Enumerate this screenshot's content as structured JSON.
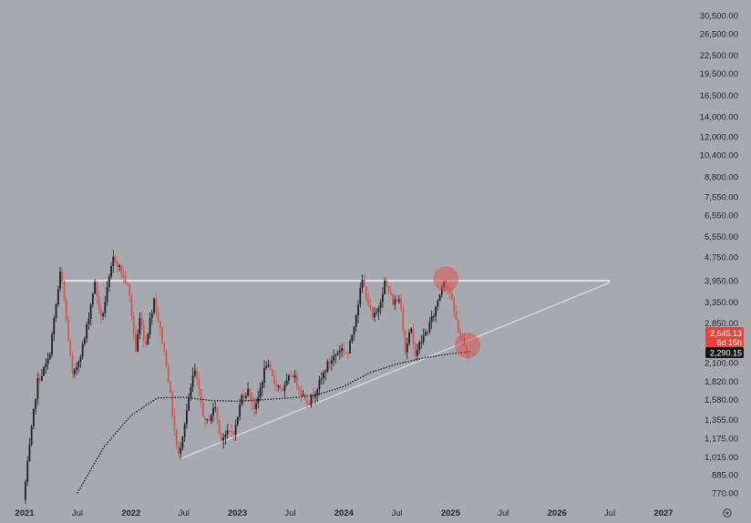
{
  "chart_data": {
    "type": "candlestick",
    "scale": "log",
    "grid": false,
    "colors": {
      "background": "#a6a9b0",
      "up": "#1e1f23",
      "down": "#d9544d",
      "resistance_line": "#e4e4e8",
      "support_line": "#d2d3d8",
      "moving_average": "#1e1f23",
      "highlight": "#d9534f",
      "price_label": "#e0463f",
      "ma_label": "#141414"
    },
    "y_ticks": [
      "30,500.00",
      "26,500.00",
      "22,500.00",
      "19,500.00",
      "16,500.00",
      "14,000.00",
      "12,000.00",
      "10,400.00",
      "8,800.00",
      "7,550.00",
      "6,550.00",
      "5,550.00",
      "4,750.00",
      "3,950.00",
      "3,350.00",
      "2,850.00",
      "2,100.00",
      "1,820.00",
      "1,580.00",
      "1,355.00",
      "1,175.00",
      "1,015.00",
      "885.00",
      "770.00"
    ],
    "x_ticks": [
      {
        "label": "2021",
        "year": true
      },
      {
        "label": "Jul",
        "year": false
      },
      {
        "label": "2022",
        "year": true
      },
      {
        "label": "Jul",
        "year": false
      },
      {
        "label": "2023",
        "year": true
      },
      {
        "label": "Jul",
        "year": false
      },
      {
        "label": "2024",
        "year": true
      },
      {
        "label": "Jul",
        "year": false
      },
      {
        "label": "2025",
        "year": true
      },
      {
        "label": "Jul",
        "year": false
      },
      {
        "label": "2026",
        "year": true
      },
      {
        "label": "Jul",
        "year": false
      },
      {
        "label": "2027",
        "year": true
      }
    ],
    "price_path": [
      [
        "2021-01-04",
        730
      ],
      [
        "2021-02-20",
        1800
      ],
      [
        "2021-04-01",
        2150
      ],
      [
        "2021-05-12",
        4300
      ],
      [
        "2021-06-22",
        1850
      ],
      [
        "2021-08-01",
        2500
      ],
      [
        "2021-09-05",
        3900
      ],
      [
        "2021-09-28",
        2900
      ],
      [
        "2021-11-10",
        4800
      ],
      [
        "2021-12-31",
        3700
      ],
      [
        "2022-01-24",
        2300
      ],
      [
        "2022-02-10",
        3100
      ],
      [
        "2022-02-24",
        2350
      ],
      [
        "2022-03-28",
        3450
      ],
      [
        "2022-05-09",
        2100
      ],
      [
        "2022-06-18",
        1000
      ],
      [
        "2022-08-13",
        2000
      ],
      [
        "2022-09-20",
        1300
      ],
      [
        "2022-10-24",
        1500
      ],
      [
        "2022-11-09",
        1180
      ],
      [
        "2022-12-31",
        1250
      ],
      [
        "2023-01-22",
        1620
      ],
      [
        "2023-02-16",
        1700
      ],
      [
        "2023-03-10",
        1450
      ],
      [
        "2023-04-16",
        2100
      ],
      [
        "2023-05-15",
        1800
      ],
      [
        "2023-06-15",
        1700
      ],
      [
        "2023-07-14",
        1950
      ],
      [
        "2023-08-17",
        1650
      ],
      [
        "2023-09-11",
        1550
      ],
      [
        "2023-10-23",
        1850
      ],
      [
        "2023-11-10",
        2050
      ],
      [
        "2023-12-28",
        2350
      ],
      [
        "2024-01-23",
        2250
      ],
      [
        "2024-03-11",
        3950
      ],
      [
        "2024-04-15",
        2950
      ],
      [
        "2024-05-01",
        3100
      ],
      [
        "2024-05-27",
        3900
      ],
      [
        "2024-06-24",
        3350
      ],
      [
        "2024-07-20",
        3450
      ],
      [
        "2024-08-05",
        2300
      ],
      [
        "2024-08-24",
        2750
      ],
      [
        "2024-09-06",
        2250
      ],
      [
        "2024-10-15",
        2650
      ],
      [
        "2024-11-09",
        3000
      ],
      [
        "2024-12-16",
        4000
      ],
      [
        "2025-01-06",
        3600
      ],
      [
        "2025-02-03",
        2700
      ],
      [
        "2025-02-24",
        2400
      ],
      [
        "2025-03-08",
        2200
      ]
    ],
    "moving_average": [
      [
        "2021-07-01",
        770
      ],
      [
        "2021-10-01",
        1100
      ],
      [
        "2022-01-01",
        1400
      ],
      [
        "2022-04-01",
        1600
      ],
      [
        "2022-07-01",
        1610
      ],
      [
        "2022-10-01",
        1570
      ],
      [
        "2023-01-01",
        1560
      ],
      [
        "2023-04-01",
        1580
      ],
      [
        "2023-07-01",
        1600
      ],
      [
        "2023-10-01",
        1640
      ],
      [
        "2024-01-01",
        1750
      ],
      [
        "2024-04-01",
        1950
      ],
      [
        "2024-07-01",
        2080
      ],
      [
        "2024-10-01",
        2180
      ],
      [
        "2025-01-01",
        2250
      ],
      [
        "2025-03-08",
        2290
      ]
    ],
    "resistance_line": {
      "from": [
        "2021-05-12",
        3950
      ],
      "to": [
        "2026-07-01",
        3950
      ]
    },
    "support_line": {
      "from": [
        "2022-06-18",
        1000
      ],
      "to": [
        "2026-07-01",
        3900
      ]
    },
    "highlights": [
      {
        "date": "2024-12-16",
        "price": 4000
      },
      {
        "date": "2025-02-28",
        "price": 2400
      }
    ],
    "labels": {
      "price": "2,645.13",
      "countdown": "6d 15h",
      "moving_average": "2,290.15"
    }
  }
}
